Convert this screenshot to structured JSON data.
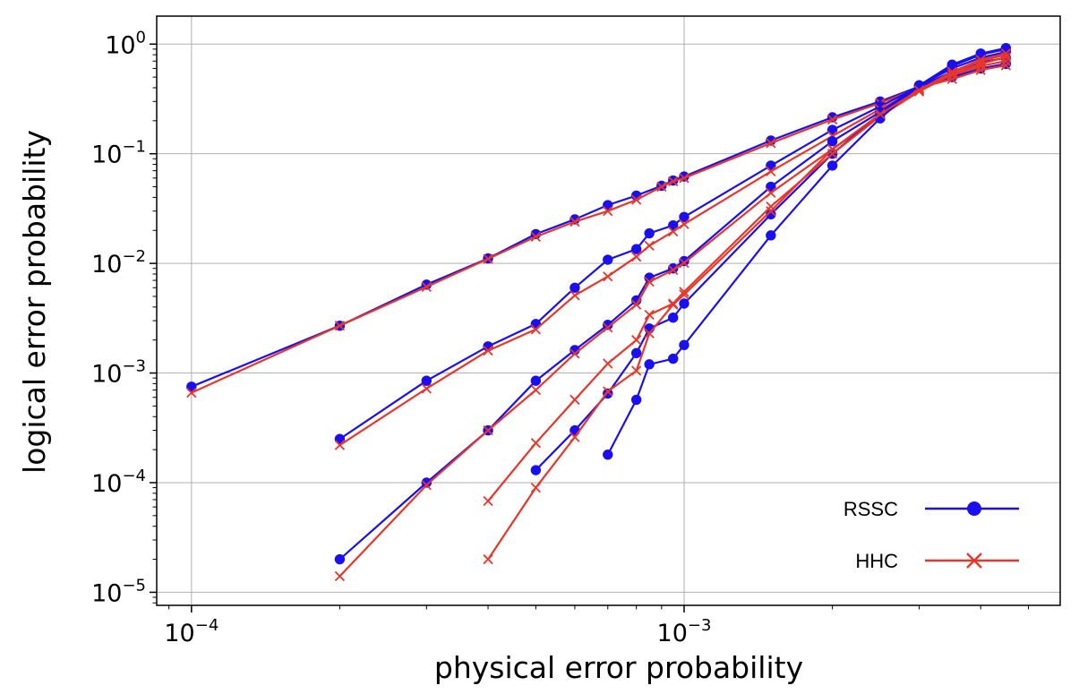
{
  "chart_data": {
    "type": "line",
    "xlabel": "physical error probability",
    "ylabel": "logical error probability",
    "x_scale": "log",
    "y_scale": "log",
    "xlim": [
      8.5e-05,
      0.0058
    ],
    "ylim": [
      7.6e-06,
      1.8
    ],
    "grid": true,
    "legend_position": "lower-right",
    "x_ticks": [
      {
        "value": 0.0001,
        "base": "10",
        "exp": "−4"
      },
      {
        "value": 0.001,
        "base": "10",
        "exp": "−3"
      }
    ],
    "y_ticks": [
      {
        "value": 1,
        "base": "10",
        "exp": "0"
      },
      {
        "value": 0.1,
        "base": "10",
        "exp": "−1"
      },
      {
        "value": 0.01,
        "base": "10",
        "exp": "−2"
      },
      {
        "value": 0.001,
        "base": "10",
        "exp": "−3"
      },
      {
        "value": 0.0001,
        "base": "10",
        "exp": "−4"
      },
      {
        "value": 1e-05,
        "base": "10",
        "exp": "−5"
      }
    ],
    "legend": [
      {
        "label": "RSSC",
        "color": "#1a0ff0",
        "marker": "circle"
      },
      {
        "label": "HHC",
        "color": "#e8362a",
        "marker": "x"
      }
    ],
    "series": [
      {
        "family": "RSSC",
        "color": "#1a0ff0",
        "marker": "circle",
        "points": [
          [
            0.0001,
            0.00075
          ],
          [
            0.0002,
            0.0027
          ],
          [
            0.0003,
            0.0064
          ],
          [
            0.0004,
            0.0111
          ],
          [
            0.0005,
            0.0185
          ],
          [
            0.0006,
            0.0252
          ],
          [
            0.0007,
            0.034
          ],
          [
            0.0008,
            0.0415
          ],
          [
            0.0009,
            0.051
          ],
          [
            0.00095,
            0.057
          ],
          [
            0.001,
            0.062
          ],
          [
            0.0015,
            0.132
          ],
          [
            0.002,
            0.215
          ],
          [
            0.0025,
            0.3
          ],
          [
            0.003,
            0.41
          ],
          [
            0.0035,
            0.5
          ],
          [
            0.004,
            0.6
          ],
          [
            0.0045,
            0.66
          ]
        ]
      },
      {
        "family": "HHC",
        "color": "#e8362a",
        "marker": "x",
        "points": [
          [
            0.0001,
            0.00066
          ],
          [
            0.0002,
            0.0027
          ],
          [
            0.0003,
            0.0061
          ],
          [
            0.0004,
            0.011
          ],
          [
            0.0005,
            0.0175
          ],
          [
            0.0006,
            0.024
          ],
          [
            0.0007,
            0.03
          ],
          [
            0.0008,
            0.038
          ],
          [
            0.0009,
            0.05
          ],
          [
            0.00095,
            0.056
          ],
          [
            0.001,
            0.06
          ],
          [
            0.0015,
            0.125
          ],
          [
            0.002,
            0.205
          ],
          [
            0.0025,
            0.29
          ],
          [
            0.003,
            0.4
          ],
          [
            0.0035,
            0.48
          ],
          [
            0.004,
            0.58
          ],
          [
            0.0045,
            0.64
          ]
        ]
      },
      {
        "family": "RSSC",
        "color": "#1a0ff0",
        "marker": "circle",
        "points": [
          [
            0.0002,
            0.00025
          ],
          [
            0.0003,
            0.00085
          ],
          [
            0.0004,
            0.00175
          ],
          [
            0.0005,
            0.0028
          ],
          [
            0.0006,
            0.006
          ],
          [
            0.0007,
            0.0108
          ],
          [
            0.0008,
            0.0135
          ],
          [
            0.00085,
            0.0188
          ],
          [
            0.00095,
            0.0222
          ],
          [
            0.001,
            0.0265
          ],
          [
            0.0015,
            0.078
          ],
          [
            0.002,
            0.165
          ],
          [
            0.0025,
            0.27
          ],
          [
            0.003,
            0.41
          ],
          [
            0.0035,
            0.56
          ],
          [
            0.004,
            0.68
          ],
          [
            0.0045,
            0.75
          ]
        ]
      },
      {
        "family": "HHC",
        "color": "#e8362a",
        "marker": "x",
        "points": [
          [
            0.0002,
            0.00022
          ],
          [
            0.0003,
            0.00072
          ],
          [
            0.0004,
            0.0016
          ],
          [
            0.0005,
            0.0025
          ],
          [
            0.0006,
            0.0051
          ],
          [
            0.0007,
            0.0076
          ],
          [
            0.0008,
            0.0115
          ],
          [
            0.00085,
            0.0145
          ],
          [
            0.00095,
            0.0195
          ],
          [
            0.001,
            0.0228
          ],
          [
            0.0015,
            0.069
          ],
          [
            0.002,
            0.145
          ],
          [
            0.0025,
            0.255
          ],
          [
            0.003,
            0.39
          ],
          [
            0.0035,
            0.52
          ],
          [
            0.004,
            0.63
          ],
          [
            0.0045,
            0.7
          ]
        ]
      },
      {
        "family": "RSSC",
        "color": "#1a0ff0",
        "marker": "circle",
        "points": [
          [
            0.0002,
            2e-05
          ],
          [
            0.0003,
            0.0001
          ],
          [
            0.0004,
            0.0003
          ],
          [
            0.0005,
            0.00085
          ],
          [
            0.0006,
            0.00162
          ],
          [
            0.0007,
            0.00275
          ],
          [
            0.0008,
            0.0046
          ],
          [
            0.00085,
            0.0074
          ],
          [
            0.00095,
            0.009
          ],
          [
            0.001,
            0.0105
          ],
          [
            0.0015,
            0.05
          ],
          [
            0.002,
            0.13
          ],
          [
            0.0025,
            0.24
          ],
          [
            0.003,
            0.42
          ],
          [
            0.0035,
            0.6
          ],
          [
            0.004,
            0.75
          ],
          [
            0.0045,
            0.85
          ]
        ]
      },
      {
        "family": "HHC",
        "color": "#e8362a",
        "marker": "x",
        "points": [
          [
            0.0002,
            1.4e-05
          ],
          [
            0.0003,
            9.5e-05
          ],
          [
            0.0004,
            0.0003
          ],
          [
            0.0005,
            0.0007
          ],
          [
            0.0006,
            0.0015
          ],
          [
            0.0007,
            0.0026
          ],
          [
            0.0008,
            0.0042
          ],
          [
            0.00085,
            0.0068
          ],
          [
            0.00095,
            0.0087
          ],
          [
            0.001,
            0.0101
          ],
          [
            0.0015,
            0.044
          ],
          [
            0.002,
            0.11
          ],
          [
            0.0025,
            0.22
          ],
          [
            0.003,
            0.38
          ],
          [
            0.0035,
            0.55
          ],
          [
            0.004,
            0.7
          ],
          [
            0.0045,
            0.8
          ]
        ]
      },
      {
        "family": "RSSC",
        "color": "#1a0ff0",
        "marker": "circle",
        "points": [
          [
            0.0005,
            0.00013
          ],
          [
            0.0006,
            0.0003
          ],
          [
            0.0007,
            0.00065
          ],
          [
            0.0008,
            0.00152
          ],
          [
            0.00085,
            0.00255
          ],
          [
            0.00095,
            0.0032
          ],
          [
            0.001,
            0.0043
          ],
          [
            0.0015,
            0.028
          ],
          [
            0.002,
            0.1
          ],
          [
            0.0025,
            0.23
          ],
          [
            0.003,
            0.42
          ],
          [
            0.0035,
            0.63
          ],
          [
            0.004,
            0.8
          ],
          [
            0.0045,
            0.9
          ]
        ]
      },
      {
        "family": "HHC",
        "color": "#e8362a",
        "marker": "x",
        "points": [
          [
            0.0004,
            6.8e-05
          ],
          [
            0.0005,
            0.00023
          ],
          [
            0.0006,
            0.00057
          ],
          [
            0.0007,
            0.00122
          ],
          [
            0.0008,
            0.002
          ],
          [
            0.00085,
            0.0034
          ],
          [
            0.00095,
            0.0043
          ],
          [
            0.001,
            0.0055
          ],
          [
            0.0015,
            0.033
          ],
          [
            0.002,
            0.1
          ],
          [
            0.0025,
            0.22
          ],
          [
            0.003,
            0.37
          ],
          [
            0.0035,
            0.53
          ],
          [
            0.004,
            0.66
          ],
          [
            0.0045,
            0.76
          ]
        ]
      },
      {
        "family": "RSSC",
        "color": "#1a0ff0",
        "marker": "circle",
        "points": [
          [
            0.0007,
            0.00018
          ],
          [
            0.0008,
            0.00057
          ],
          [
            0.00085,
            0.0012
          ],
          [
            0.00095,
            0.00135
          ],
          [
            0.001,
            0.0018
          ],
          [
            0.0015,
            0.018
          ],
          [
            0.002,
            0.078
          ],
          [
            0.0025,
            0.21
          ],
          [
            0.003,
            0.42
          ],
          [
            0.0035,
            0.65
          ],
          [
            0.004,
            0.82
          ],
          [
            0.0045,
            0.92
          ]
        ]
      },
      {
        "family": "HHC",
        "color": "#e8362a",
        "marker": "x",
        "points": [
          [
            0.0004,
            2e-05
          ],
          [
            0.0005,
            9e-05
          ],
          [
            0.0006,
            0.00026
          ],
          [
            0.0007,
            0.00068
          ],
          [
            0.0008,
            0.00105
          ],
          [
            0.00085,
            0.0023
          ],
          [
            0.00095,
            0.0042
          ],
          [
            0.001,
            0.0052
          ],
          [
            0.0015,
            0.03
          ],
          [
            0.002,
            0.11
          ],
          [
            0.0025,
            0.23
          ],
          [
            0.003,
            0.38
          ],
          [
            0.0035,
            0.56
          ],
          [
            0.004,
            0.72
          ],
          [
            0.0045,
            0.82
          ]
        ]
      }
    ]
  }
}
